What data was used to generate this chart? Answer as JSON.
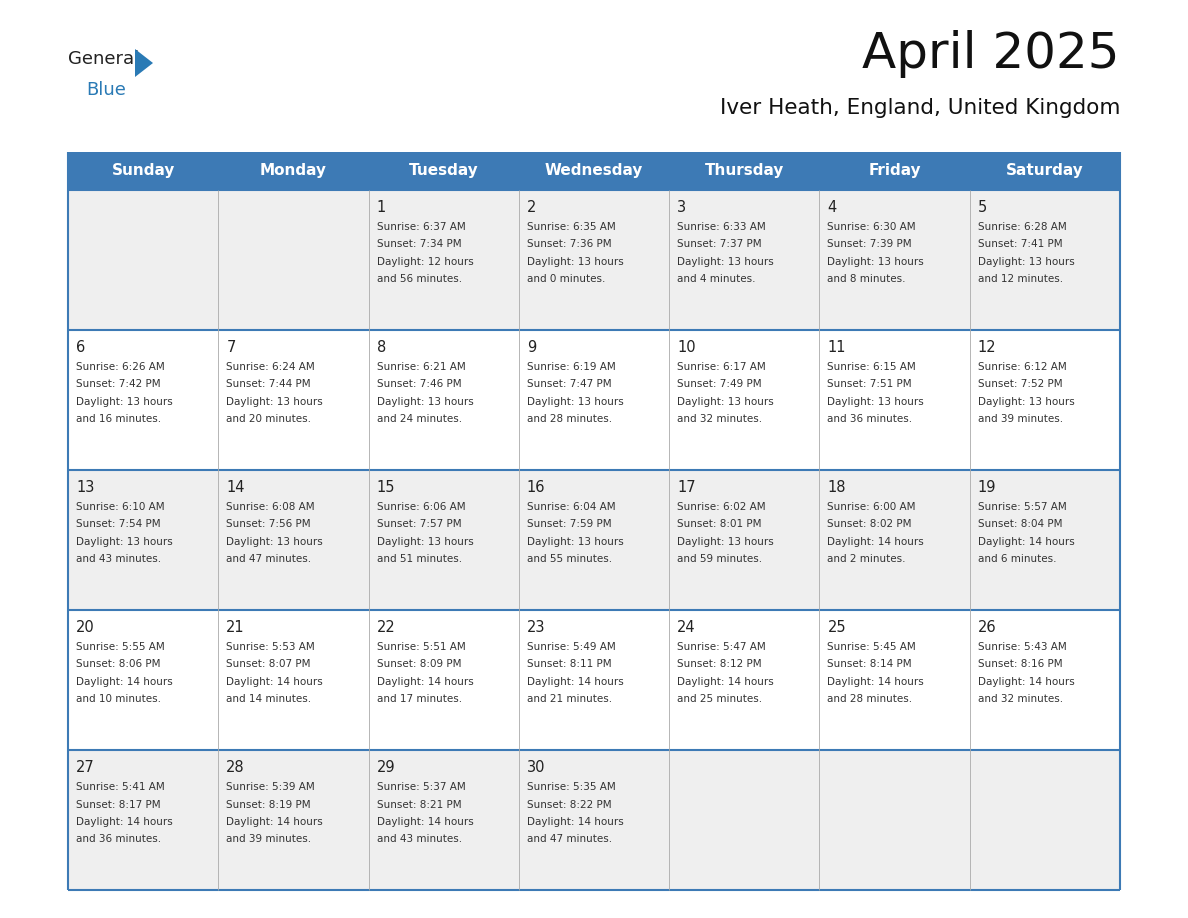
{
  "title": "April 2025",
  "subtitle": "Iver Heath, England, United Kingdom",
  "header_bg_color": "#3d7ab5",
  "header_text_color": "#ffffff",
  "cell_bg_row0": "#efefef",
  "cell_bg_row1": "#ffffff",
  "row_line_color": "#3d7ab5",
  "text_color": "#333333",
  "number_color": "#222222",
  "general_text_color": "#222222",
  "general_blue_color": "#2a7ab5",
  "day_names": [
    "Sunday",
    "Monday",
    "Tuesday",
    "Wednesday",
    "Thursday",
    "Friday",
    "Saturday"
  ],
  "calendar": [
    [
      {
        "day": "",
        "sunrise": "",
        "sunset": "",
        "daylight1": "",
        "daylight2": ""
      },
      {
        "day": "",
        "sunrise": "",
        "sunset": "",
        "daylight1": "",
        "daylight2": ""
      },
      {
        "day": "1",
        "sunrise": "Sunrise: 6:37 AM",
        "sunset": "Sunset: 7:34 PM",
        "daylight1": "Daylight: 12 hours",
        "daylight2": "and 56 minutes."
      },
      {
        "day": "2",
        "sunrise": "Sunrise: 6:35 AM",
        "sunset": "Sunset: 7:36 PM",
        "daylight1": "Daylight: 13 hours",
        "daylight2": "and 0 minutes."
      },
      {
        "day": "3",
        "sunrise": "Sunrise: 6:33 AM",
        "sunset": "Sunset: 7:37 PM",
        "daylight1": "Daylight: 13 hours",
        "daylight2": "and 4 minutes."
      },
      {
        "day": "4",
        "sunrise": "Sunrise: 6:30 AM",
        "sunset": "Sunset: 7:39 PM",
        "daylight1": "Daylight: 13 hours",
        "daylight2": "and 8 minutes."
      },
      {
        "day": "5",
        "sunrise": "Sunrise: 6:28 AM",
        "sunset": "Sunset: 7:41 PM",
        "daylight1": "Daylight: 13 hours",
        "daylight2": "and 12 minutes."
      }
    ],
    [
      {
        "day": "6",
        "sunrise": "Sunrise: 6:26 AM",
        "sunset": "Sunset: 7:42 PM",
        "daylight1": "Daylight: 13 hours",
        "daylight2": "and 16 minutes."
      },
      {
        "day": "7",
        "sunrise": "Sunrise: 6:24 AM",
        "sunset": "Sunset: 7:44 PM",
        "daylight1": "Daylight: 13 hours",
        "daylight2": "and 20 minutes."
      },
      {
        "day": "8",
        "sunrise": "Sunrise: 6:21 AM",
        "sunset": "Sunset: 7:46 PM",
        "daylight1": "Daylight: 13 hours",
        "daylight2": "and 24 minutes."
      },
      {
        "day": "9",
        "sunrise": "Sunrise: 6:19 AM",
        "sunset": "Sunset: 7:47 PM",
        "daylight1": "Daylight: 13 hours",
        "daylight2": "and 28 minutes."
      },
      {
        "day": "10",
        "sunrise": "Sunrise: 6:17 AM",
        "sunset": "Sunset: 7:49 PM",
        "daylight1": "Daylight: 13 hours",
        "daylight2": "and 32 minutes."
      },
      {
        "day": "11",
        "sunrise": "Sunrise: 6:15 AM",
        "sunset": "Sunset: 7:51 PM",
        "daylight1": "Daylight: 13 hours",
        "daylight2": "and 36 minutes."
      },
      {
        "day": "12",
        "sunrise": "Sunrise: 6:12 AM",
        "sunset": "Sunset: 7:52 PM",
        "daylight1": "Daylight: 13 hours",
        "daylight2": "and 39 minutes."
      }
    ],
    [
      {
        "day": "13",
        "sunrise": "Sunrise: 6:10 AM",
        "sunset": "Sunset: 7:54 PM",
        "daylight1": "Daylight: 13 hours",
        "daylight2": "and 43 minutes."
      },
      {
        "day": "14",
        "sunrise": "Sunrise: 6:08 AM",
        "sunset": "Sunset: 7:56 PM",
        "daylight1": "Daylight: 13 hours",
        "daylight2": "and 47 minutes."
      },
      {
        "day": "15",
        "sunrise": "Sunrise: 6:06 AM",
        "sunset": "Sunset: 7:57 PM",
        "daylight1": "Daylight: 13 hours",
        "daylight2": "and 51 minutes."
      },
      {
        "day": "16",
        "sunrise": "Sunrise: 6:04 AM",
        "sunset": "Sunset: 7:59 PM",
        "daylight1": "Daylight: 13 hours",
        "daylight2": "and 55 minutes."
      },
      {
        "day": "17",
        "sunrise": "Sunrise: 6:02 AM",
        "sunset": "Sunset: 8:01 PM",
        "daylight1": "Daylight: 13 hours",
        "daylight2": "and 59 minutes."
      },
      {
        "day": "18",
        "sunrise": "Sunrise: 6:00 AM",
        "sunset": "Sunset: 8:02 PM",
        "daylight1": "Daylight: 14 hours",
        "daylight2": "and 2 minutes."
      },
      {
        "day": "19",
        "sunrise": "Sunrise: 5:57 AM",
        "sunset": "Sunset: 8:04 PM",
        "daylight1": "Daylight: 14 hours",
        "daylight2": "and 6 minutes."
      }
    ],
    [
      {
        "day": "20",
        "sunrise": "Sunrise: 5:55 AM",
        "sunset": "Sunset: 8:06 PM",
        "daylight1": "Daylight: 14 hours",
        "daylight2": "and 10 minutes."
      },
      {
        "day": "21",
        "sunrise": "Sunrise: 5:53 AM",
        "sunset": "Sunset: 8:07 PM",
        "daylight1": "Daylight: 14 hours",
        "daylight2": "and 14 minutes."
      },
      {
        "day": "22",
        "sunrise": "Sunrise: 5:51 AM",
        "sunset": "Sunset: 8:09 PM",
        "daylight1": "Daylight: 14 hours",
        "daylight2": "and 17 minutes."
      },
      {
        "day": "23",
        "sunrise": "Sunrise: 5:49 AM",
        "sunset": "Sunset: 8:11 PM",
        "daylight1": "Daylight: 14 hours",
        "daylight2": "and 21 minutes."
      },
      {
        "day": "24",
        "sunrise": "Sunrise: 5:47 AM",
        "sunset": "Sunset: 8:12 PM",
        "daylight1": "Daylight: 14 hours",
        "daylight2": "and 25 minutes."
      },
      {
        "day": "25",
        "sunrise": "Sunrise: 5:45 AM",
        "sunset": "Sunset: 8:14 PM",
        "daylight1": "Daylight: 14 hours",
        "daylight2": "and 28 minutes."
      },
      {
        "day": "26",
        "sunrise": "Sunrise: 5:43 AM",
        "sunset": "Sunset: 8:16 PM",
        "daylight1": "Daylight: 14 hours",
        "daylight2": "and 32 minutes."
      }
    ],
    [
      {
        "day": "27",
        "sunrise": "Sunrise: 5:41 AM",
        "sunset": "Sunset: 8:17 PM",
        "daylight1": "Daylight: 14 hours",
        "daylight2": "and 36 minutes."
      },
      {
        "day": "28",
        "sunrise": "Sunrise: 5:39 AM",
        "sunset": "Sunset: 8:19 PM",
        "daylight1": "Daylight: 14 hours",
        "daylight2": "and 39 minutes."
      },
      {
        "day": "29",
        "sunrise": "Sunrise: 5:37 AM",
        "sunset": "Sunset: 8:21 PM",
        "daylight1": "Daylight: 14 hours",
        "daylight2": "and 43 minutes."
      },
      {
        "day": "30",
        "sunrise": "Sunrise: 5:35 AM",
        "sunset": "Sunset: 8:22 PM",
        "daylight1": "Daylight: 14 hours",
        "daylight2": "and 47 minutes."
      },
      {
        "day": "",
        "sunrise": "",
        "sunset": "",
        "daylight1": "",
        "daylight2": ""
      },
      {
        "day": "",
        "sunrise": "",
        "sunset": "",
        "daylight1": "",
        "daylight2": ""
      },
      {
        "day": "",
        "sunrise": "",
        "sunset": "",
        "daylight1": "",
        "daylight2": ""
      }
    ]
  ]
}
